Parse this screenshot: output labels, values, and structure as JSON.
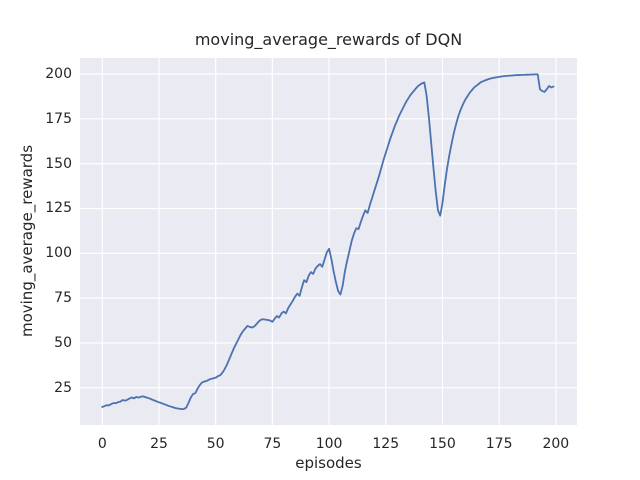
{
  "chart_data": {
    "type": "line",
    "title": "moving_average_rewards of DQN",
    "xlabel": "episodes",
    "ylabel": "moving_average_rewards",
    "x_ticks": [
      0,
      25,
      50,
      75,
      100,
      125,
      150,
      175,
      200
    ],
    "y_ticks": [
      25,
      50,
      75,
      100,
      125,
      150,
      175,
      200
    ],
    "xlim": [
      -9.83,
      209.33
    ],
    "ylim": [
      4.25,
      208.92
    ],
    "grid": true,
    "legend": "none",
    "line_color": "#4C72B0",
    "panel_color": "#EAEAF2",
    "grid_color": "#ffffff",
    "text_color": "#262626",
    "series": [
      {
        "name": "moving_average_rewards",
        "x_is_index": true,
        "values": [
          14.3,
          14.8,
          15.3,
          15.2,
          16.0,
          16.5,
          16.4,
          17.0,
          17.3,
          18.2,
          17.8,
          18.3,
          19.0,
          19.6,
          19.1,
          19.9,
          19.5,
          20.0,
          20.2,
          19.8,
          19.4,
          19.0,
          18.4,
          17.9,
          17.4,
          16.9,
          16.5,
          16.0,
          15.5,
          15.0,
          14.6,
          14.2,
          13.8,
          13.5,
          13.3,
          13.1,
          13.2,
          13.9,
          16.5,
          19.5,
          21.5,
          22.0,
          24.5,
          26.5,
          28.0,
          28.5,
          28.8,
          29.5,
          30.0,
          30.3,
          30.6,
          31.5,
          32.0,
          33.5,
          35.5,
          38.0,
          41.0,
          44.0,
          47.0,
          49.5,
          52.0,
          54.5,
          56.5,
          58.0,
          59.5,
          59.0,
          58.6,
          59.2,
          60.5,
          62.0,
          63.0,
          63.2,
          63.0,
          62.8,
          62.5,
          61.8,
          63.5,
          65.0,
          64.2,
          66.5,
          67.5,
          66.5,
          69.5,
          71.5,
          73.5,
          75.8,
          77.5,
          76.3,
          81.0,
          85.0,
          83.9,
          87.5,
          89.5,
          88.5,
          91.5,
          93.0,
          94.0,
          92.5,
          96.5,
          100.5,
          102.5,
          97.0,
          90.0,
          84.0,
          79.0,
          77.0,
          82.0,
          90.0,
          96.0,
          101.5,
          107.0,
          111.0,
          114.0,
          113.5,
          117.5,
          121.0,
          124.0,
          122.5,
          127.0,
          131.0,
          135.0,
          139.0,
          143.0,
          147.5,
          152.0,
          156.0,
          160.0,
          164.0,
          167.5,
          171.0,
          174.0,
          177.0,
          179.5,
          182.0,
          184.5,
          186.5,
          188.5,
          190.0,
          191.5,
          193.0,
          194.0,
          194.8,
          195.3,
          188.0,
          176.0,
          162.0,
          148.0,
          135.0,
          124.0,
          121.0,
          128.0,
          138.0,
          147.0,
          154.5,
          161.0,
          167.0,
          172.0,
          176.5,
          180.0,
          183.0,
          185.5,
          187.5,
          189.5,
          191.0,
          192.5,
          193.5,
          194.5,
          195.5,
          196.0,
          196.5,
          197.0,
          197.4,
          197.7,
          198.0,
          198.2,
          198.4,
          198.6,
          198.8,
          198.9,
          199.0,
          199.1,
          199.2,
          199.3,
          199.4,
          199.4,
          199.5,
          199.5,
          199.6,
          199.6,
          199.7,
          199.7,
          199.8,
          199.8,
          191.5,
          190.5,
          190.0,
          191.5,
          193.3,
          192.5,
          193.0
        ]
      }
    ]
  }
}
